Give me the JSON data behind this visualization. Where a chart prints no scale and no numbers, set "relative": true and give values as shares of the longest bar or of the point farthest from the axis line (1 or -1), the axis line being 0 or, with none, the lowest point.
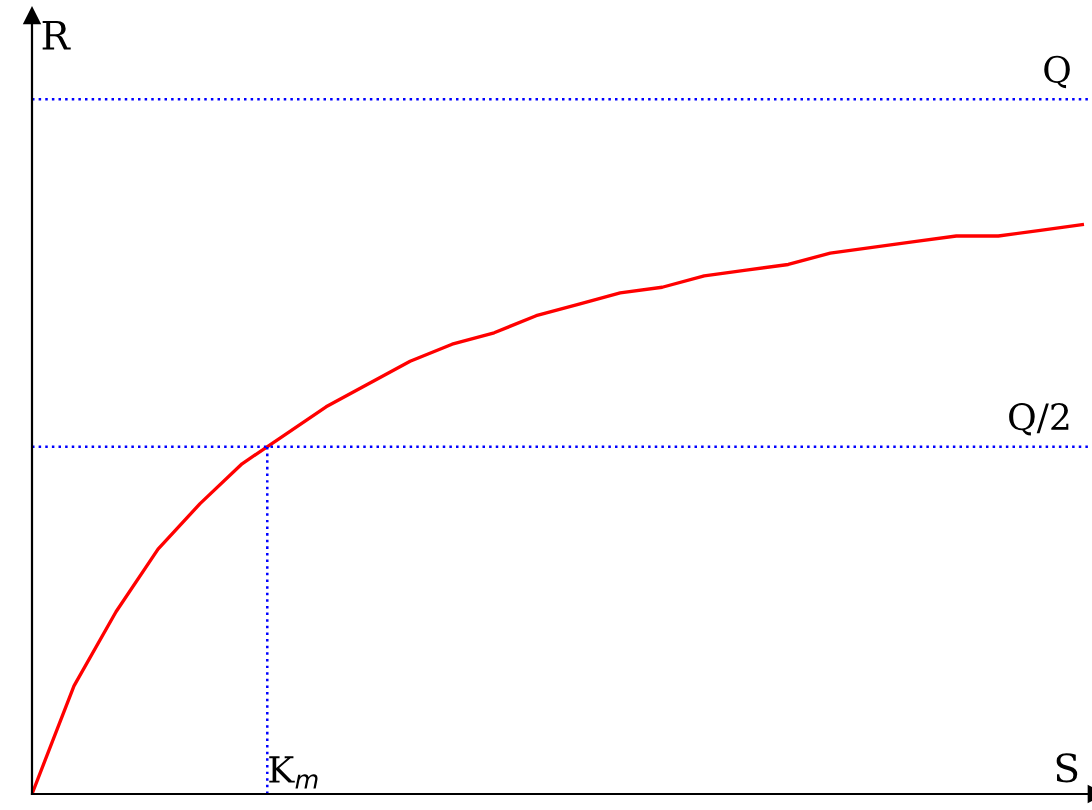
{
  "chart_data": {
    "type": "line",
    "relative": true,
    "xlabel": "S",
    "ylabel": "R",
    "categories": [
      null,
      null,
      null,
      null,
      null,
      null,
      null,
      null,
      null,
      null,
      null,
      null,
      null,
      null,
      null,
      null,
      null,
      null,
      null,
      null,
      null,
      null,
      null,
      null,
      null,
      null
    ],
    "series": [
      {
        "color": "#ff0000",
        "values": [
          0,
          0.19,
          0.32,
          0.43,
          0.51,
          0.58,
          0.63,
          0.68,
          0.72,
          0.76,
          0.79,
          0.81,
          0.84,
          0.86,
          0.88,
          0.89,
          0.91,
          0.92,
          0.93,
          0.95,
          0.96,
          0.97,
          0.98,
          0.98,
          0.99,
          1.0
        ]
      }
    ],
    "ref_lines": [
      {
        "axis": "y",
        "value": 1.22,
        "label": "Q",
        "color": "#0000ff",
        "line_style": "dotted"
      },
      {
        "axis": "y",
        "value": 0.61,
        "label": "Q/2",
        "color": "#0000ff",
        "line_style": "dotted"
      }
    ],
    "annotations": [
      "K$_{m}$"
    ],
    "legend": false,
    "marker": "none",
    "line_style": "solid"
  }
}
